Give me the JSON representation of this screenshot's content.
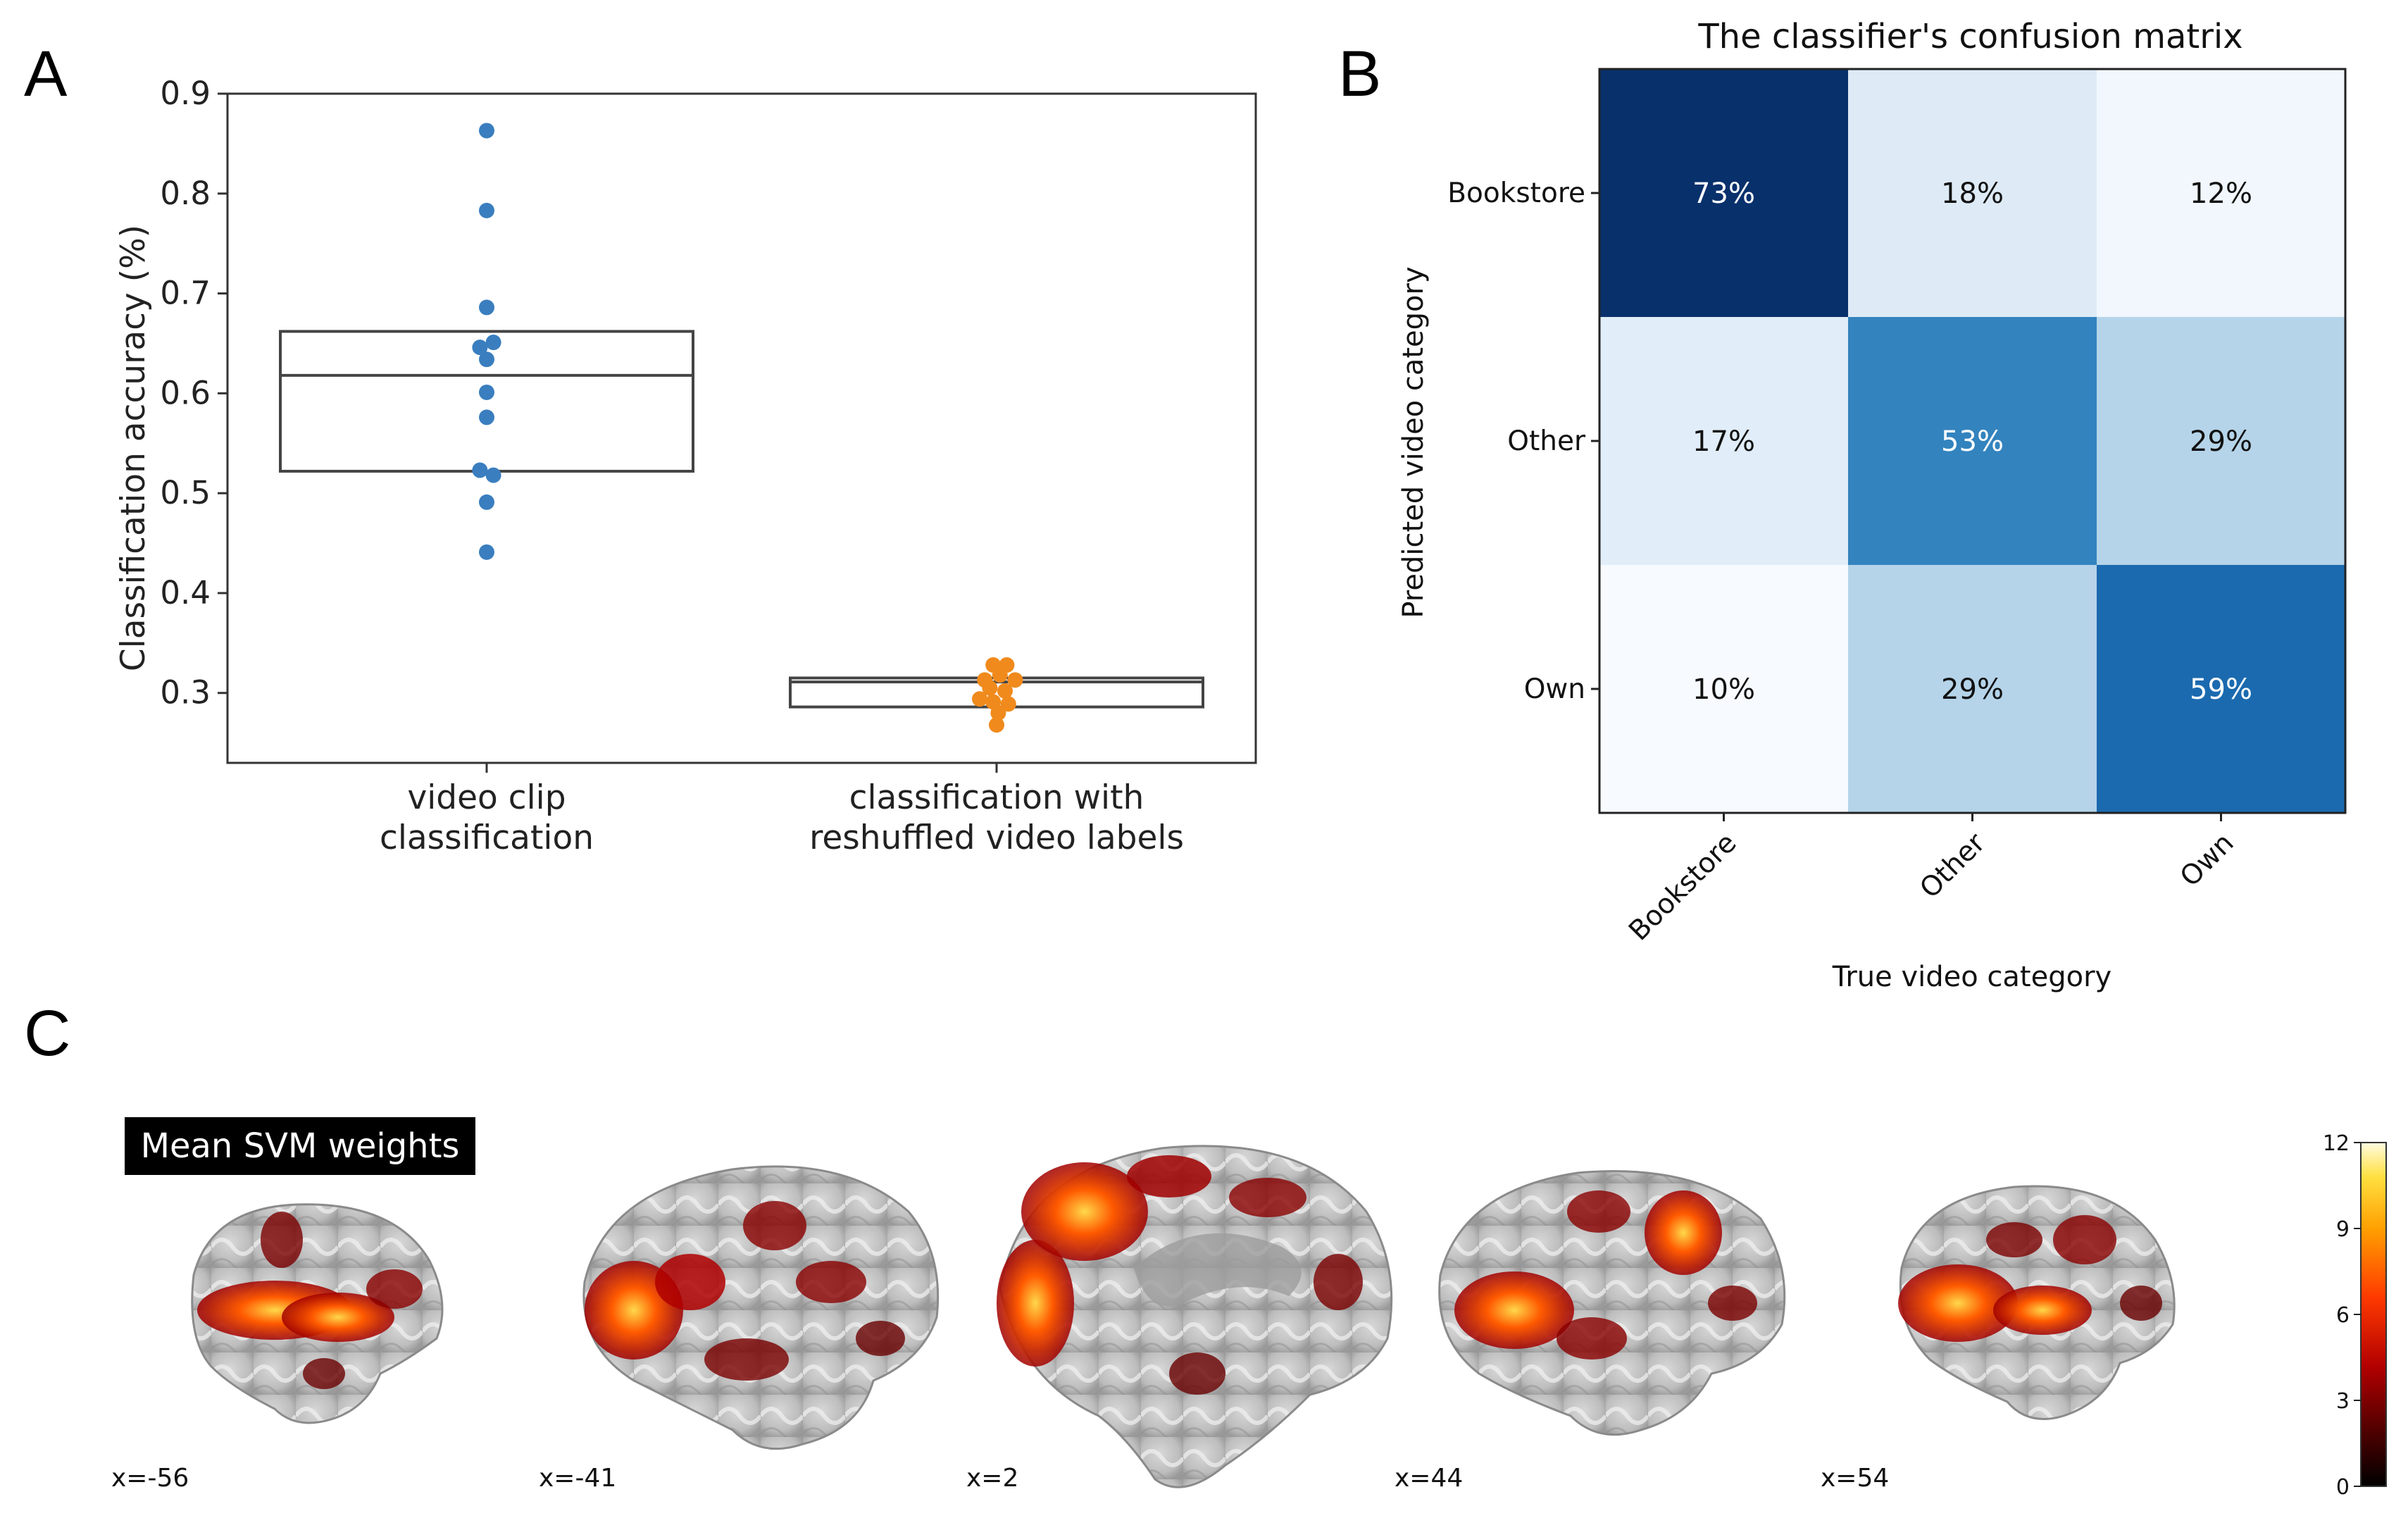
{
  "panels": {
    "a": "A",
    "b": "B",
    "c": "C"
  },
  "chart_data": [
    {
      "type": "scatter",
      "title": "",
      "xlabel": "",
      "ylabel": "Classification  accuracy (%)",
      "ylim": [
        0.23,
        0.9
      ],
      "yticks": [
        "0.3",
        "0.4",
        "0.5",
        "0.6",
        "0.7",
        "0.8",
        "0.9"
      ],
      "categories": [
        {
          "line1": "video clip",
          "line2": "classification"
        },
        {
          "line1": "classification with",
          "line2": "reshuffled video labels"
        }
      ],
      "series": [
        {
          "name": "video clip classification",
          "color": "#3a7ebf",
          "box": {
            "q1": 0.522,
            "median": 0.618,
            "q3": 0.662
          },
          "points": [
            {
              "dx": 0,
              "y": 0.863
            },
            {
              "dx": 0,
              "y": 0.783
            },
            {
              "dx": 0,
              "y": 0.686
            },
            {
              "dx": -0.08,
              "y": 0.646
            },
            {
              "dx": 0.08,
              "y": 0.651
            },
            {
              "dx": 0,
              "y": 0.634
            },
            {
              "dx": 0,
              "y": 0.601
            },
            {
              "dx": 0,
              "y": 0.576
            },
            {
              "dx": -0.08,
              "y": 0.523
            },
            {
              "dx": 0.08,
              "y": 0.518
            },
            {
              "dx": 0,
              "y": 0.491
            },
            {
              "dx": 0,
              "y": 0.441
            }
          ]
        },
        {
          "name": "classification with reshuffled video labels",
          "color": "#f08a1c",
          "box": {
            "q1": 0.286,
            "median": 0.311,
            "q3": 0.315
          },
          "points": [
            {
              "dx": -0.04,
              "y": 0.328
            },
            {
              "dx": 0.12,
              "y": 0.328
            },
            {
              "dx": -0.14,
              "y": 0.313
            },
            {
              "dx": 0.04,
              "y": 0.318
            },
            {
              "dx": 0.22,
              "y": 0.313
            },
            {
              "dx": -0.08,
              "y": 0.305
            },
            {
              "dx": 0.1,
              "y": 0.302
            },
            {
              "dx": -0.2,
              "y": 0.294
            },
            {
              "dx": -0.04,
              "y": 0.291
            },
            {
              "dx": 0.14,
              "y": 0.289
            },
            {
              "dx": 0.02,
              "y": 0.28
            },
            {
              "dx": 0.0,
              "y": 0.268
            }
          ]
        }
      ]
    },
    {
      "type": "heatmap",
      "title": "The classifier's confusion matrix",
      "xlabel": "True video category",
      "ylabel": "Predicted video category",
      "rows": [
        "Bookstore",
        "Other",
        "Own"
      ],
      "cols": [
        "Bookstore",
        "Other",
        "Own"
      ],
      "values": [
        [
          73,
          18,
          12
        ],
        [
          17,
          53,
          29
        ],
        [
          10,
          29,
          59
        ]
      ],
      "labels": [
        [
          "73%",
          "18%",
          "12%"
        ],
        [
          "17%",
          "53%",
          "29%"
        ],
        [
          "10%",
          "29%",
          "59%"
        ]
      ],
      "cmap": "Blues",
      "vmin": 10,
      "vmax": 73
    }
  ],
  "brains": {
    "legend": "Mean SVM weights",
    "colorbar": {
      "ticks": [
        "0",
        "3",
        "6",
        "9",
        "12"
      ],
      "min": 0,
      "max": 12
    },
    "slices": [
      "x=-56",
      "x=-41",
      "x=2",
      "x=44",
      "x=54"
    ]
  }
}
